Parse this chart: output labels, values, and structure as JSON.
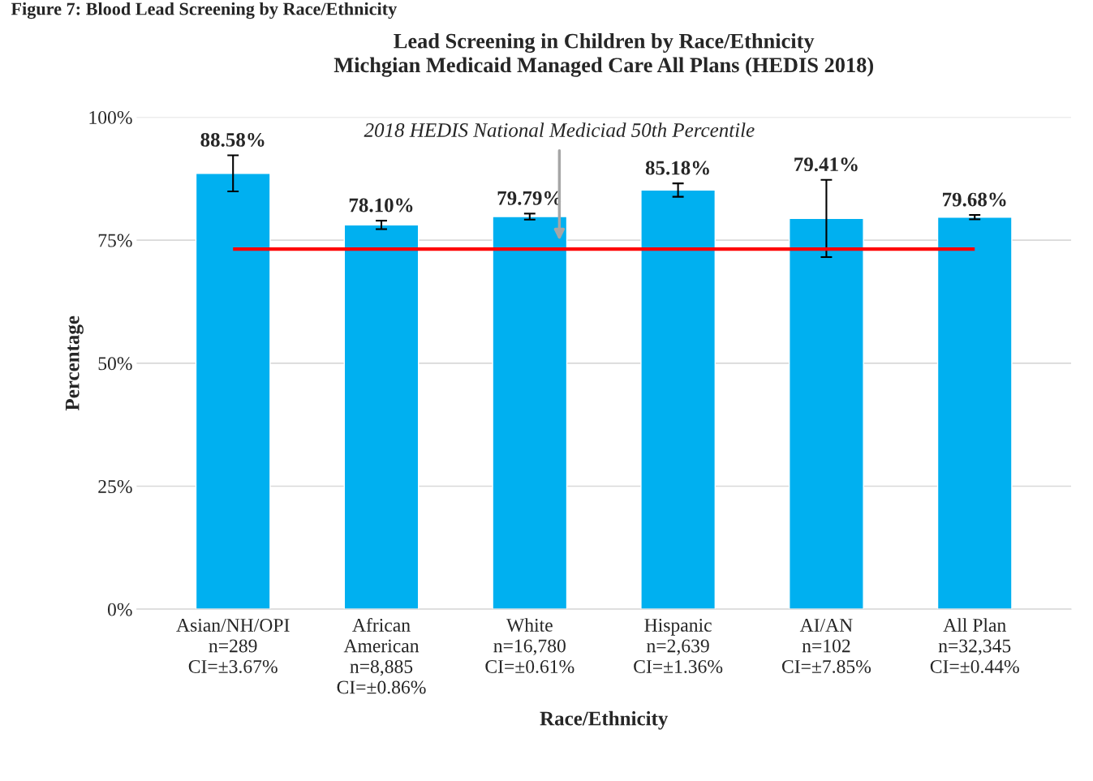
{
  "chart_data": {
    "type": "bar",
    "title": "Lead Screening in Children by Race/Ethnicity\nMichgian Medicaid Managed Care All Plans (HEDIS 2018)",
    "xlabel": "Race/Ethnicity",
    "ylabel": "Percentage",
    "categories": [
      "Asian/NH/OPI\nn=289\nCI=±3.67%",
      "African\nAmerican\nn=8,885\nCI=±0.86%",
      "White\nn=16,780\nCI=±0.61%",
      "Hispanic\nn=2,639\nCI=±1.36%",
      "AI/AN\nn=102\nCI=±7.85%",
      "All Plan\nn=32,345\nCI=±0.44%"
    ],
    "values": [
      88.58,
      78.1,
      79.79,
      85.18,
      79.41,
      79.68
    ],
    "errors": [
      3.67,
      0.86,
      0.61,
      1.36,
      7.85,
      0.44
    ],
    "value_labels": [
      "88.58%",
      "78.10%",
      "79.79%",
      "85.18%",
      "79.41%",
      "79.68%"
    ],
    "color": "#00b0f0",
    "ylim": [
      0,
      100
    ],
    "yticks": [
      {
        "value": 0,
        "label": "0%"
      },
      {
        "value": 25,
        "label": "25%"
      },
      {
        "value": 50,
        "label": "50%"
      },
      {
        "value": 75,
        "label": "75%"
      },
      {
        "value": 100,
        "label": "100%"
      }
    ],
    "grid": "y",
    "ref_lines": [
      {
        "axis": "y",
        "value": 73.2,
        "color": "#ff0000"
      }
    ],
    "annotations": [
      "Figure 7: Blood Lead Screening by Race/Ethnicity",
      "2018 HEDIS National Mediciad 50th Percentile"
    ]
  }
}
